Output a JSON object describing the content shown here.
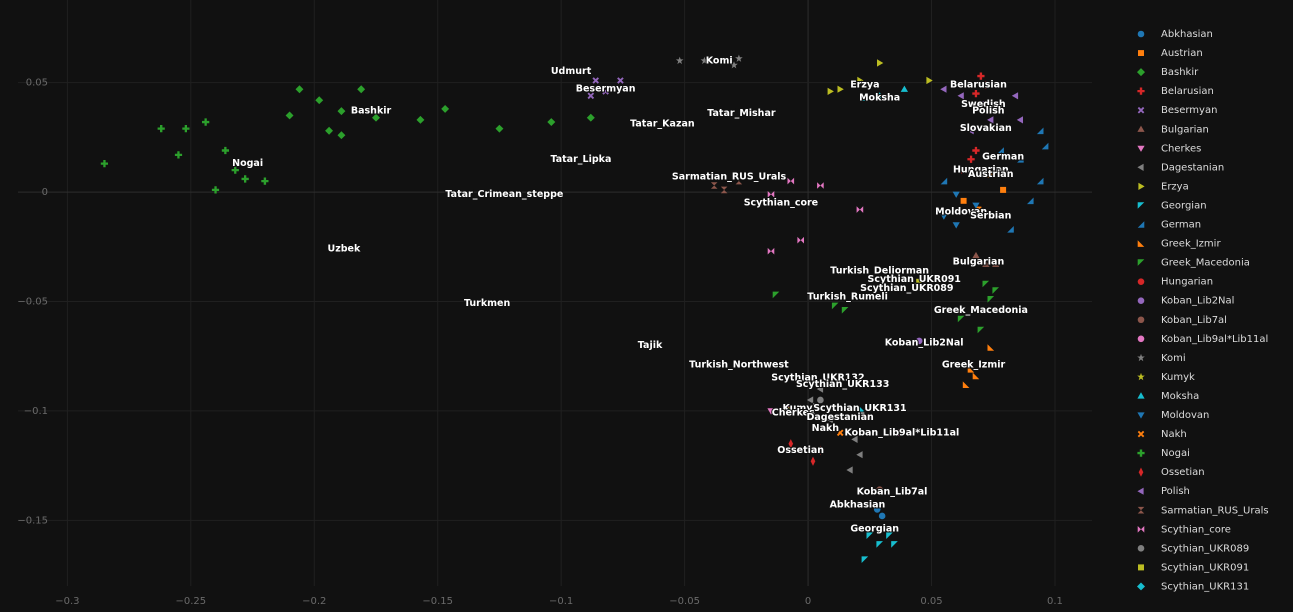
{
  "chart_data": {
    "type": "scatter",
    "grid": true,
    "xlim": [
      -0.32,
      0.115
    ],
    "ylim": [
      -0.18,
      0.08
    ],
    "xticks": [
      {
        "value": -0.3,
        "label": "−0.3"
      },
      {
        "value": -0.25,
        "label": "−0.25"
      },
      {
        "value": -0.2,
        "label": "−0.2"
      },
      {
        "value": -0.15,
        "label": "−0.15"
      },
      {
        "value": -0.1,
        "label": "−0.1"
      },
      {
        "value": -0.05,
        "label": "−0.05"
      },
      0,
      0.05,
      0.1
    ],
    "yticks": [
      {
        "value": -0.15,
        "label": "−0.15"
      },
      {
        "value": -0.1,
        "label": "−0.1"
      },
      {
        "value": -0.05,
        "label": "−0.05"
      },
      0,
      0.05
    ],
    "series": [
      {
        "name": "Abkhasian",
        "color": "#1f77b4",
        "symbol": "circle",
        "x": [
          0.028,
          0.03
        ],
        "y": [
          -0.145,
          -0.148
        ]
      },
      {
        "name": "Austrian",
        "color": "#ff7f0e",
        "symbol": "square",
        "x": [
          0.074,
          0.063,
          0.079,
          0.069
        ],
        "y": [
          0.008,
          -0.004,
          0.001,
          -0.008
        ]
      },
      {
        "name": "Bashkir",
        "color": "#2ca02c",
        "symbol": "diamond",
        "x": [
          -0.206,
          -0.198,
          -0.189,
          -0.181,
          -0.21,
          -0.194,
          -0.175,
          -0.157,
          -0.147,
          -0.125,
          -0.104,
          -0.088,
          -0.189
        ],
        "y": [
          0.047,
          0.042,
          0.037,
          0.047,
          0.035,
          0.028,
          0.034,
          0.033,
          0.038,
          0.029,
          0.032,
          0.034,
          0.026
        ]
      },
      {
        "name": "Belarusian",
        "color": "#d62728",
        "symbol": "cross",
        "x": [
          0.07,
          0.072,
          0.068,
          0.068,
          0.066
        ],
        "y": [
          0.053,
          0.049,
          0.045,
          0.019,
          0.015
        ]
      },
      {
        "name": "Besermyan",
        "color": "#9467bd",
        "symbol": "x",
        "x": [
          -0.086,
          -0.082,
          -0.076,
          -0.088
        ],
        "y": [
          0.051,
          0.046,
          0.051,
          0.044
        ]
      },
      {
        "name": "Bulgarian",
        "color": "#8c564b",
        "symbol": "triangle-up",
        "x": [
          0.072,
          0.076,
          0.068
        ],
        "y": [
          -0.033,
          -0.033,
          -0.029
        ]
      },
      {
        "name": "Cherkes",
        "color": "#e377c2",
        "symbol": "triangle-down",
        "x": [
          -0.015,
          -0.009
        ],
        "y": [
          -0.1,
          -0.099
        ]
      },
      {
        "name": "Dagestanian",
        "color": "#7f7f7f",
        "symbol": "triangle-left",
        "x": [
          0.005,
          0.009,
          0.019,
          0.017,
          0.021,
          0.001
        ],
        "y": [
          -0.09,
          -0.104,
          -0.113,
          -0.127,
          -0.12,
          -0.095
        ]
      },
      {
        "name": "Erzya",
        "color": "#bcbd22",
        "symbol": "triangle-right",
        "x": [
          0.009,
          0.013,
          0.021,
          0.029,
          0.049
        ],
        "y": [
          0.046,
          0.047,
          0.051,
          0.059,
          0.051
        ]
      },
      {
        "name": "Georgian",
        "color": "#17becf",
        "symbol": "triangle-nw",
        "x": [
          0.025,
          0.029,
          0.035,
          0.023,
          0.033
        ],
        "y": [
          -0.157,
          -0.161,
          -0.161,
          -0.168,
          -0.157
        ]
      },
      {
        "name": "German",
        "color": "#1f77b4",
        "symbol": "triangle-se",
        "x": [
          0.094,
          0.086,
          0.09,
          0.082,
          0.094,
          0.078,
          0.055,
          0.096
        ],
        "y": [
          0.028,
          0.015,
          -0.004,
          -0.017,
          0.005,
          0.019,
          0.005,
          0.021
        ]
      },
      {
        "name": "Greek_Izmir",
        "color": "#ff7f0e",
        "symbol": "triangle-sw",
        "x": [
          0.064,
          0.068,
          0.074,
          0.066
        ],
        "y": [
          -0.088,
          -0.084,
          -0.071,
          -0.081
        ]
      },
      {
        "name": "Greek_Macedonia",
        "color": "#2ca02c",
        "symbol": "triangle-nw",
        "x": [
          0.072,
          0.074,
          0.068,
          0.062,
          0.076,
          0.07,
          0.015,
          0.011,
          -0.013
        ],
        "y": [
          -0.042,
          -0.049,
          -0.054,
          -0.058,
          -0.045,
          -0.063,
          -0.054,
          -0.052,
          -0.047
        ]
      },
      {
        "name": "Hungarian",
        "color": "#d62728",
        "symbol": "circle",
        "x": [
          0.062,
          0.068
        ],
        "y": [
          0.01,
          0.008
        ]
      },
      {
        "name": "Koban_Lib2Nal",
        "color": "#9467bd",
        "symbol": "circle",
        "x": [
          0.045
        ],
        "y": [
          -0.068
        ]
      },
      {
        "name": "Koban_Lib7al",
        "color": "#8c564b",
        "symbol": "circle",
        "x": [
          0.029
        ],
        "y": [
          -0.136
        ]
      },
      {
        "name": "Koban_Lib9al*Lib11al",
        "color": "#e377c2",
        "symbol": "circle",
        "x": [
          0.037
        ],
        "y": [
          -0.11
        ]
      },
      {
        "name": "Komi",
        "color": "#7f7f7f",
        "symbol": "star",
        "x": [
          -0.052,
          -0.042,
          -0.028,
          -0.03
        ],
        "y": [
          0.06,
          0.06,
          0.061,
          0.058
        ]
      },
      {
        "name": "Kumyk",
        "color": "#bcbd22",
        "symbol": "star",
        "x": [
          -0.007
        ],
        "y": [
          -0.099
        ]
      },
      {
        "name": "Moksha",
        "color": "#17becf",
        "symbol": "triangle-up",
        "x": [
          0.029,
          0.039,
          0.023
        ],
        "y": [
          0.044,
          0.047,
          0.043
        ]
      },
      {
        "name": "Moldovan",
        "color": "#1f77b4",
        "symbol": "triangle-down",
        "x": [
          0.06,
          0.055,
          0.068,
          0.06
        ],
        "y": [
          -0.001,
          -0.011,
          -0.006,
          -0.015
        ]
      },
      {
        "name": "Nakh",
        "color": "#ff7f0e",
        "symbol": "x",
        "x": [
          0.005,
          0.013
        ],
        "y": [
          -0.108,
          -0.11
        ]
      },
      {
        "name": "Nogai",
        "color": "#2ca02c",
        "symbol": "cross",
        "x": [
          -0.285,
          -0.262,
          -0.252,
          -0.244,
          -0.24,
          -0.232,
          -0.228,
          -0.22,
          -0.236,
          -0.255
        ],
        "y": [
          0.013,
          0.029,
          0.029,
          0.032,
          0.001,
          0.01,
          0.006,
          0.005,
          0.019,
          0.017
        ]
      },
      {
        "name": "Ossetian",
        "color": "#d62728",
        "symbol": "diamond-tall",
        "x": [
          -0.007,
          0.002,
          0.005
        ],
        "y": [
          -0.115,
          -0.123,
          -0.118
        ]
      },
      {
        "name": "Polish",
        "color": "#9467bd",
        "symbol": "triangle-left",
        "x": [
          0.062,
          0.07,
          0.078,
          0.084,
          0.074,
          0.066,
          0.086,
          0.055
        ],
        "y": [
          0.044,
          0.04,
          0.037,
          0.044,
          0.033,
          0.028,
          0.033,
          0.047
        ]
      },
      {
        "name": "Sarmatian_RUS_Urals",
        "color": "#8c564b",
        "symbol": "hourglass",
        "x": [
          -0.038,
          -0.034,
          -0.028
        ],
        "y": [
          0.003,
          0.001,
          0.005
        ]
      },
      {
        "name": "Scythian_core",
        "color": "#e377c2",
        "symbol": "bowtie",
        "x": [
          -0.015,
          -0.007,
          -0.003,
          0.021,
          -0.015,
          0.005
        ],
        "y": [
          -0.001,
          0.005,
          -0.022,
          -0.008,
          -0.027,
          0.003
        ]
      },
      {
        "name": "Scythian_UKR089",
        "color": "#7f7f7f",
        "symbol": "circle",
        "x": [
          0.005
        ],
        "y": [
          -0.095
        ]
      },
      {
        "name": "Scythian_UKR091",
        "color": "#bcbd22",
        "symbol": "square",
        "x": [
          0.045
        ],
        "y": [
          -0.041
        ]
      },
      {
        "name": "Scythian_UKR131",
        "color": "#17becf",
        "symbol": "diamond",
        "x": [
          0.021
        ],
        "y": [
          -0.1
        ]
      }
    ],
    "annotations": [
      {
        "text": "Komi",
        "x": -0.036,
        "y": 0.06
      },
      {
        "text": "Udmurt",
        "x": -0.096,
        "y": 0.055
      },
      {
        "text": "Besermyan",
        "x": -0.082,
        "y": 0.047
      },
      {
        "text": "Bashkir",
        "x": -0.177,
        "y": 0.037
      },
      {
        "text": "Nogai",
        "x": -0.227,
        "y": 0.013
      },
      {
        "text": "Tatar_Kazan",
        "x": -0.059,
        "y": 0.031
      },
      {
        "text": "Tatar_Mishar",
        "x": -0.027,
        "y": 0.036
      },
      {
        "text": "Tatar_Lipka",
        "x": -0.092,
        "y": 0.015
      },
      {
        "text": "Erzya",
        "x": 0.023,
        "y": 0.049
      },
      {
        "text": "Moksha",
        "x": 0.029,
        "y": 0.043
      },
      {
        "text": "Belarusian",
        "x": 0.069,
        "y": 0.049
      },
      {
        "text": "Swedish",
        "x": 0.071,
        "y": 0.04
      },
      {
        "text": "Polish",
        "x": 0.073,
        "y": 0.037
      },
      {
        "text": "Slovakian",
        "x": 0.072,
        "y": 0.029
      },
      {
        "text": "German",
        "x": 0.079,
        "y": 0.016
      },
      {
        "text": "Hungarian",
        "x": 0.07,
        "y": 0.01
      },
      {
        "text": "Austrian",
        "x": 0.074,
        "y": 0.008
      },
      {
        "text": "Moldovan",
        "x": 0.062,
        "y": -0.009
      },
      {
        "text": "Serbian",
        "x": 0.074,
        "y": -0.011
      },
      {
        "text": "Bulgarian",
        "x": 0.069,
        "y": -0.032
      },
      {
        "text": "Sarmatian_RUS_Urals",
        "x": -0.032,
        "y": 0.007
      },
      {
        "text": "Scythian_core",
        "x": -0.011,
        "y": -0.005
      },
      {
        "text": "Tatar_Crimean_steppe",
        "x": -0.123,
        "y": -0.001
      },
      {
        "text": "Uzbek",
        "x": -0.188,
        "y": -0.026
      },
      {
        "text": "Turkmen",
        "x": -0.13,
        "y": -0.051
      },
      {
        "text": "Tajik",
        "x": -0.064,
        "y": -0.07
      },
      {
        "text": "Turkish_Deliorman",
        "x": 0.029,
        "y": -0.036
      },
      {
        "text": "Scythian_UKR091",
        "x": 0.043,
        "y": -0.04
      },
      {
        "text": "Scythian_UKR089",
        "x": 0.04,
        "y": -0.044
      },
      {
        "text": "Turkish_Rumeli",
        "x": 0.016,
        "y": -0.048
      },
      {
        "text": "Greek_Macedonia",
        "x": 0.07,
        "y": -0.054
      },
      {
        "text": "Koban_Lib2Nal",
        "x": 0.047,
        "y": -0.069
      },
      {
        "text": "Greek_Izmir",
        "x": 0.067,
        "y": -0.079
      },
      {
        "text": "Turkish_Northwest",
        "x": -0.028,
        "y": -0.079
      },
      {
        "text": "Scythian_UKR132",
        "x": 0.004,
        "y": -0.085
      },
      {
        "text": "Scythian_UKR133",
        "x": 0.014,
        "y": -0.088
      },
      {
        "text": "Kumyk",
        "x": -0.003,
        "y": -0.099
      },
      {
        "text": "Scythian_UKR131",
        "x": 0.021,
        "y": -0.099
      },
      {
        "text": "Cherkes",
        "x": -0.006,
        "y": -0.101
      },
      {
        "text": "Dagestanian",
        "x": 0.013,
        "y": -0.103
      },
      {
        "text": "Nakh",
        "x": 0.007,
        "y": -0.108
      },
      {
        "text": "Koban_Lib9al*Lib11al",
        "x": 0.038,
        "y": -0.11
      },
      {
        "text": "Ossetian",
        "x": -0.003,
        "y": -0.118
      },
      {
        "text": "Koban_Lib7al",
        "x": 0.034,
        "y": -0.137
      },
      {
        "text": "Abkhasian",
        "x": 0.02,
        "y": -0.143
      },
      {
        "text": "Georgian",
        "x": 0.027,
        "y": -0.154
      }
    ]
  }
}
